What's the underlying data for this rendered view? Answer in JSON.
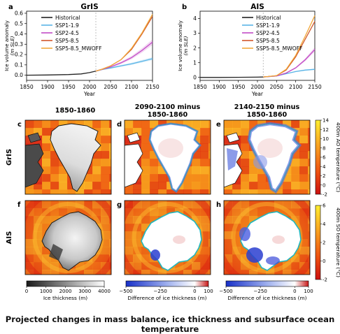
{
  "caption": "Projected changes in mass balance, ice thickness and subsurface ocean temperature",
  "colors": {
    "Historical": "#222222",
    "SSP1-1.9": "#5ab4e6",
    "SSP2-4.5": "#c24bc6",
    "SSP5-8.5": "#d0562a",
    "SSP5-8.5_MWOFF": "#f2a93b"
  },
  "chart_data": [
    {
      "panel": "a",
      "title": "GrIS",
      "type": "line",
      "xlabel": "Year",
      "ylabel": "Ice volume anomaly",
      "ylabel_unit": "(m SLE)",
      "xlim": [
        1850,
        2150
      ],
      "ylim": [
        -0.05,
        0.62
      ],
      "xticks": [
        1850,
        1900,
        1950,
        2000,
        2050,
        2100,
        2150
      ],
      "yticks": [
        0.0,
        0.1,
        0.2,
        0.3,
        0.4,
        0.5,
        0.6
      ],
      "ytick_labels": [
        "0.0",
        "0.1",
        "0.2",
        "0.3",
        "0.4",
        "0.5",
        "0.6"
      ],
      "series": [
        {
          "name": "Historical",
          "x": [
            1850,
            1900,
            1950,
            1980,
            2000,
            2015
          ],
          "y": [
            0.0,
            0.002,
            0.006,
            0.012,
            0.025,
            0.04
          ]
        },
        {
          "name": "SSP1-1.9",
          "x": [
            2015,
            2030,
            2050,
            2075,
            2100,
            2125,
            2150
          ],
          "y": [
            0.04,
            0.055,
            0.07,
            0.09,
            0.11,
            0.135,
            0.16
          ]
        },
        {
          "name": "SSP2-4.5",
          "x": [
            2015,
            2030,
            2050,
            2075,
            2100,
            2125,
            2150
          ],
          "y": [
            0.04,
            0.056,
            0.08,
            0.12,
            0.17,
            0.24,
            0.32
          ]
        },
        {
          "name": "SSP5-8.5",
          "x": [
            2015,
            2030,
            2050,
            2075,
            2100,
            2125,
            2150
          ],
          "y": [
            0.04,
            0.058,
            0.09,
            0.15,
            0.25,
            0.4,
            0.57
          ]
        },
        {
          "name": "SSP5-8.5_MWOFF",
          "x": [
            2015,
            2030,
            2050,
            2075,
            2100,
            2125,
            2150
          ],
          "y": [
            0.04,
            0.058,
            0.09,
            0.15,
            0.26,
            0.41,
            0.59
          ]
        }
      ]
    },
    {
      "panel": "b",
      "title": "AIS",
      "type": "line",
      "xlabel": "Year",
      "ylabel": "Ice volume anomaly",
      "ylabel_unit": "(m SLE)",
      "xlim": [
        1850,
        2150
      ],
      "ylim": [
        -0.2,
        4.5
      ],
      "xticks": [
        1850,
        1900,
        1950,
        2000,
        2050,
        2100,
        2150
      ],
      "yticks": [
        0,
        1,
        2,
        3,
        4
      ],
      "ytick_labels": [
        "0",
        "1",
        "2",
        "3",
        "4"
      ],
      "series": [
        {
          "name": "Historical",
          "x": [
            1850,
            1900,
            1950,
            2000,
            2015
          ],
          "y": [
            0.0,
            0.0,
            0.01,
            0.02,
            0.03
          ]
        },
        {
          "name": "SSP1-1.9",
          "x": [
            2015,
            2050,
            2075,
            2100,
            2125,
            2150
          ],
          "y": [
            0.03,
            0.1,
            0.25,
            0.4,
            0.5,
            0.55
          ]
        },
        {
          "name": "SSP2-4.5",
          "x": [
            2015,
            2050,
            2075,
            2100,
            2125,
            2150
          ],
          "y": [
            0.03,
            0.1,
            0.3,
            0.65,
            1.2,
            1.9
          ]
        },
        {
          "name": "SSP5-8.5",
          "x": [
            2015,
            2050,
            2075,
            2100,
            2125,
            2150
          ],
          "y": [
            0.03,
            0.12,
            0.5,
            1.4,
            2.6,
            3.8
          ]
        },
        {
          "name": "SSP5-8.5_MWOFF",
          "x": [
            2015,
            2050,
            2075,
            2100,
            2125,
            2150
          ],
          "y": [
            0.03,
            0.12,
            0.55,
            1.5,
            2.8,
            4.2
          ]
        }
      ]
    },
    {
      "type": "heatmap",
      "panels": {
        "c": {
          "title": "1850-1860"
        },
        "d": {
          "title": "2090-2100 minus 1850-1860"
        },
        "e": {
          "title": "2140-2150 minus 1850-1860"
        },
        "f": {},
        "g": {},
        "h": {}
      },
      "column_titles": [
        [
          "1850-1860"
        ],
        [
          "2090-2100 minus",
          "1850-1860"
        ],
        [
          "2140-2150 minus",
          "1850-1860"
        ]
      ],
      "row_labels": [
        "GrIS",
        "AIS"
      ],
      "colorbars": {
        "ao_temp": {
          "label": "400m AO temperature (°C)",
          "ticks": [
            "-2",
            "0",
            "2",
            "4",
            "6",
            "8",
            "10",
            "12",
            "14"
          ],
          "range": [
            -2,
            14
          ]
        },
        "so_temp": {
          "label": "400m SO temperature (°C)",
          "ticks": [
            "-2",
            "0",
            "2",
            "4",
            "6"
          ],
          "range": [
            -2,
            6
          ]
        },
        "thickness": {
          "label": "Ice thickness (m)",
          "ticks": [
            "0",
            "1000",
            "2000",
            "3000",
            "4000"
          ],
          "range": [
            0,
            4000
          ]
        },
        "diff_d": {
          "label": "Difference of ice thickness (m)",
          "ticks": [
            "−500",
            "−250",
            "0",
            "100"
          ],
          "range": [
            -500,
            100
          ]
        },
        "diff_e": {
          "label": "Difference of ice thickness (m)",
          "ticks": [
            "−500",
            "−250",
            "0",
            "100"
          ],
          "range": [
            -500,
            100
          ]
        }
      }
    }
  ]
}
